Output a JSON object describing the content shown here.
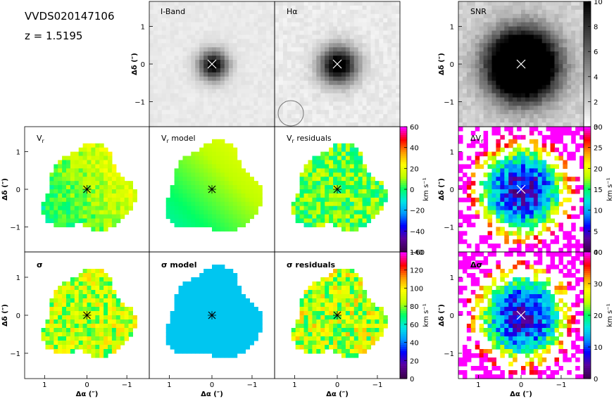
{
  "header": {
    "object_id": "VVDS020147106",
    "redshift": "z = 1.5195"
  },
  "panels": {
    "iband": "I-Band",
    "halpha": "Hα",
    "snr": "SNR",
    "vr": "V",
    "vr_model": "V",
    "vr_model_suffix": " model",
    "vr_resid": "V",
    "vr_resid_suffix": " residuals",
    "dvr": "ΔV",
    "sig": "σ",
    "sig_model": "σ model",
    "sig_resid": "σ residuals",
    "dsig": "Δσ",
    "sub_r": "r"
  },
  "axes": {
    "ylabel": "Δδ (″)",
    "xlabel": "Δα (″)",
    "y_ticks": [
      "1",
      "0",
      "−1"
    ],
    "x_ticks": [
      "1",
      "0",
      "−1"
    ]
  },
  "colorbars": {
    "snr": {
      "label": "",
      "ticks": [
        "10",
        "8",
        "6",
        "4",
        "2",
        "0"
      ],
      "range": [
        0,
        10
      ]
    },
    "vr": {
      "label": "km s⁻¹",
      "ticks": [
        "60",
        "40",
        "20",
        "0",
        "−20",
        "−40",
        "−60"
      ],
      "range": [
        -65,
        65
      ]
    },
    "dvr": {
      "label": "km s⁻¹",
      "ticks": [
        "30",
        "25",
        "20",
        "15",
        "10",
        "5",
        "0"
      ],
      "range": [
        0,
        30
      ]
    },
    "sig": {
      "label": "km s⁻¹",
      "ticks": [
        "140",
        "120",
        "100",
        "80",
        "60",
        "40",
        "20",
        "0"
      ],
      "range": [
        0,
        150
      ]
    },
    "dsig": {
      "label": "km s⁻¹",
      "ticks": [
        "40",
        "30",
        "20",
        "10",
        "0"
      ],
      "range": [
        0,
        40
      ]
    }
  },
  "colors": {
    "grayscale": "black-white",
    "rainbow": [
      "#3b004d",
      "#5b00a0",
      "#0000ff",
      "#0096ff",
      "#00e6e6",
      "#00ff66",
      "#bfff00",
      "#ffff00",
      "#ff9900",
      "#ff0000",
      "#ff00ff"
    ]
  }
}
